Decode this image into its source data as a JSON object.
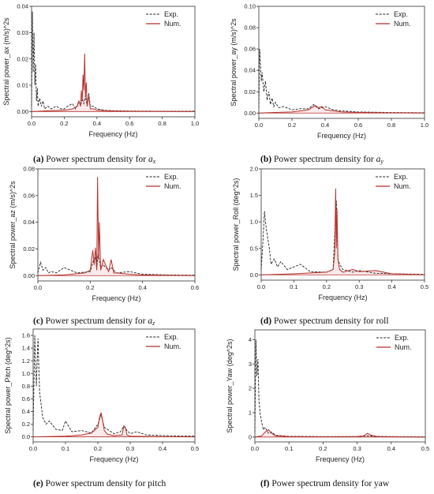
{
  "chart_data": [
    {
      "type": "line",
      "caption": {
        "label": "(a)",
        "text": "Power spectrum density for",
        "var": "a",
        "sub": "x"
      },
      "xlabel": "Frequency (Hz)",
      "ylabel": "Spectral power_ax (m/s)^2s",
      "xlim": [
        0,
        1.0
      ],
      "ylim": [
        -0.002,
        0.04
      ],
      "xticks": [
        0.0,
        0.2,
        0.4,
        0.6,
        0.8,
        1.0
      ],
      "xtick_labels": [
        "0.0",
        "0.2",
        "0.4",
        "0.6",
        "0.8",
        "1.0"
      ],
      "yticks": [
        0.0,
        0.01,
        0.02,
        0.03,
        0.04
      ],
      "ytick_labels": [
        "0.00",
        "0.01",
        "0.02",
        "0.03",
        "0.04"
      ],
      "legend": [
        "Exp.",
        "Num."
      ],
      "legend_position": "top-right",
      "series": [
        {
          "name": "Exp.",
          "style": "dashed",
          "x": [
            0.0,
            0.005,
            0.01,
            0.015,
            0.02,
            0.025,
            0.03,
            0.035,
            0.04,
            0.05,
            0.06,
            0.07,
            0.08,
            0.1,
            0.12,
            0.15,
            0.18,
            0.2,
            0.22,
            0.25,
            0.27,
            0.29,
            0.3,
            0.31,
            0.32,
            0.33,
            0.34,
            0.35,
            0.36,
            0.38,
            0.4,
            0.45,
            0.5,
            0.6,
            0.8,
            1.0
          ],
          "y": [
            0.002,
            0.038,
            0.015,
            0.03,
            0.01,
            0.018,
            0.004,
            0.009,
            0.002,
            0.005,
            0.002,
            0.004,
            0.001,
            0.002,
            0.001,
            0.002,
            0.001,
            0.001,
            0.002,
            0.003,
            0.001,
            0.004,
            0.002,
            0.005,
            0.003,
            0.006,
            0.002,
            0.007,
            0.002,
            0.002,
            0.001,
            0.0005,
            0.0003,
            0.0002,
            0.0001,
            0.0001
          ]
        },
        {
          "name": "Num.",
          "style": "solid",
          "x": [
            0.0,
            0.1,
            0.2,
            0.25,
            0.28,
            0.29,
            0.3,
            0.305,
            0.31,
            0.315,
            0.32,
            0.325,
            0.33,
            0.335,
            0.34,
            0.35,
            0.36,
            0.38,
            0.4,
            0.5,
            0.6,
            1.0
          ],
          "y": [
            0.0,
            0.0003,
            0.0005,
            0.001,
            0.002,
            0.004,
            0.002,
            0.008,
            0.004,
            0.014,
            0.008,
            0.022,
            0.006,
            0.011,
            0.002,
            0.006,
            0.001,
            0.001,
            0.0005,
            0.0002,
            0.0001,
            0.0
          ]
        }
      ]
    },
    {
      "type": "line",
      "caption": {
        "label": "(b)",
        "text": "Power spectrum density for",
        "var": "a",
        "sub": "y"
      },
      "xlabel": "Frequency (Hz)",
      "ylabel": "Spectral power_ay (m/s)^2s",
      "xlim": [
        0,
        1.0
      ],
      "ylim": [
        -0.005,
        0.1
      ],
      "xticks": [
        0.0,
        0.2,
        0.4,
        0.6,
        0.8,
        1.0
      ],
      "xtick_labels": [
        "0.0",
        "0.2",
        "0.4",
        "0.6",
        "0.8",
        "1.0"
      ],
      "yticks": [
        0.0,
        0.02,
        0.04,
        0.06,
        0.08,
        0.1
      ],
      "ytick_labels": [
        "0.00",
        "0.02",
        "0.04",
        "0.06",
        "0.08",
        "0.10"
      ],
      "legend": [
        "Exp.",
        "Num."
      ],
      "legend_position": "top-right",
      "series": [
        {
          "name": "Exp.",
          "style": "dashed",
          "x": [
            0.0,
            0.005,
            0.01,
            0.015,
            0.02,
            0.03,
            0.04,
            0.05,
            0.06,
            0.07,
            0.08,
            0.09,
            0.1,
            0.12,
            0.15,
            0.2,
            0.25,
            0.3,
            0.33,
            0.36,
            0.4,
            0.45,
            0.5,
            0.6,
            0.8,
            1.0
          ],
          "y": [
            0.005,
            0.06,
            0.045,
            0.03,
            0.038,
            0.02,
            0.03,
            0.012,
            0.02,
            0.008,
            0.014,
            0.006,
            0.01,
            0.005,
            0.006,
            0.003,
            0.004,
            0.004,
            0.008,
            0.004,
            0.006,
            0.003,
            0.002,
            0.001,
            0.0005,
            0.0003
          ]
        },
        {
          "name": "Num.",
          "style": "solid",
          "x": [
            0.0,
            0.1,
            0.2,
            0.25,
            0.3,
            0.32,
            0.34,
            0.36,
            0.38,
            0.4,
            0.45,
            0.5,
            0.6,
            0.8,
            1.0
          ],
          "y": [
            0.0,
            0.0005,
            0.001,
            0.002,
            0.003,
            0.005,
            0.007,
            0.005,
            0.006,
            0.003,
            0.002,
            0.001,
            0.0005,
            0.0002,
            0.0
          ]
        }
      ]
    },
    {
      "type": "line",
      "caption": {
        "label": "(c)",
        "text": "Power spectrum density for",
        "var": "a",
        "sub": "z"
      },
      "xlabel": "Frequency (Hz)",
      "ylabel": "Spectral power_az (m/s)^2s",
      "xlim": [
        0,
        0.6
      ],
      "ylim": [
        -0.004,
        0.08
      ],
      "xticks": [
        0.0,
        0.2,
        0.4,
        0.6
      ],
      "xtick_labels": [
        "0.0",
        "0.2",
        "0.4",
        "0.6"
      ],
      "yticks": [
        0.0,
        0.02,
        0.04,
        0.06,
        0.08
      ],
      "ytick_labels": [
        "0.00",
        "0.02",
        "0.04",
        "0.06",
        "0.08"
      ],
      "legend": [
        "Exp.",
        "Num."
      ],
      "legend_position": "top-right",
      "series": [
        {
          "name": "Exp.",
          "style": "dashed",
          "x": [
            0.0,
            0.01,
            0.02,
            0.03,
            0.04,
            0.05,
            0.07,
            0.1,
            0.15,
            0.2,
            0.21,
            0.22,
            0.225,
            0.23,
            0.24,
            0.25,
            0.27,
            0.28,
            0.3,
            0.35,
            0.4,
            0.5,
            0.6
          ],
          "y": [
            0.002,
            0.01,
            0.004,
            0.006,
            0.002,
            0.003,
            0.002,
            0.006,
            0.002,
            0.003,
            0.01,
            0.014,
            0.005,
            0.016,
            0.006,
            0.008,
            0.004,
            0.006,
            0.002,
            0.003,
            0.001,
            0.0005,
            0.0003
          ]
        },
        {
          "name": "Num.",
          "style": "solid",
          "x": [
            0.0,
            0.1,
            0.18,
            0.2,
            0.21,
            0.215,
            0.22,
            0.225,
            0.228,
            0.232,
            0.235,
            0.24,
            0.25,
            0.27,
            0.28,
            0.29,
            0.3,
            0.35,
            0.4,
            0.5,
            0.6
          ],
          "y": [
            0.0,
            0.0005,
            0.002,
            0.004,
            0.019,
            0.008,
            0.021,
            0.004,
            0.074,
            0.012,
            0.04,
            0.004,
            0.012,
            0.003,
            0.012,
            0.002,
            0.002,
            0.001,
            0.0005,
            0.0002,
            0.0
          ]
        }
      ]
    },
    {
      "type": "line",
      "caption": {
        "label": "(d)",
        "text": "Power spectrum density for roll",
        "var": "",
        "sub": ""
      },
      "xlabel": "Frequency (Hz)",
      "ylabel": "Spectral power_Roll (deg^2s)",
      "xlim": [
        0,
        0.5
      ],
      "ylim": [
        -0.1,
        2.0
      ],
      "xticks": [
        0.0,
        0.1,
        0.2,
        0.3,
        0.4,
        0.5
      ],
      "xtick_labels": [
        "0.0",
        "0.1",
        "0.2",
        "0.3",
        "0.4",
        "0.5"
      ],
      "yticks": [
        0.0,
        0.5,
        1.0,
        1.5,
        2.0
      ],
      "ytick_labels": [
        "0.0",
        "0.5",
        "1.0",
        "1.5",
        "2.0"
      ],
      "legend": [
        "Exp.",
        "Num."
      ],
      "legend_position": "top-right",
      "series": [
        {
          "name": "Exp.",
          "style": "dashed",
          "x": [
            0.0,
            0.005,
            0.01,
            0.015,
            0.02,
            0.025,
            0.03,
            0.04,
            0.05,
            0.06,
            0.08,
            0.1,
            0.12,
            0.15,
            0.2,
            0.22,
            0.23,
            0.235,
            0.24,
            0.25,
            0.28,
            0.3,
            0.35,
            0.4,
            0.5
          ],
          "y": [
            0.1,
            0.6,
            1.2,
            0.9,
            0.7,
            0.5,
            0.2,
            0.3,
            0.15,
            0.25,
            0.1,
            0.15,
            0.2,
            0.06,
            0.05,
            0.1,
            1.4,
            0.3,
            0.2,
            0.1,
            0.05,
            0.08,
            0.03,
            0.02,
            0.01
          ]
        },
        {
          "name": "Num.",
          "style": "solid",
          "x": [
            0.0,
            0.1,
            0.2,
            0.22,
            0.225,
            0.228,
            0.23,
            0.232,
            0.235,
            0.24,
            0.25,
            0.28,
            0.3,
            0.35,
            0.4,
            0.5
          ],
          "y": [
            0.0,
            0.02,
            0.05,
            0.1,
            0.4,
            1.63,
            0.5,
            1.25,
            0.3,
            0.1,
            0.05,
            0.1,
            0.06,
            0.08,
            0.02,
            0.0
          ]
        }
      ]
    },
    {
      "type": "line",
      "caption": {
        "label": "(e)",
        "text": "Power spectrum density for pitch",
        "var": "",
        "sub": ""
      },
      "xlabel": "Frequency (Hz)",
      "ylabel": "Spectral power_Pitch (deg^2s)",
      "xlim": [
        0,
        0.5
      ],
      "ylim": [
        -0.08,
        1.7
      ],
      "xticks": [
        0.0,
        0.1,
        0.2,
        0.3,
        0.4,
        0.5
      ],
      "xtick_labels": [
        "0.0",
        "0.1",
        "0.2",
        "0.3",
        "0.4",
        "0.5"
      ],
      "yticks": [
        0.0,
        0.2,
        0.4,
        0.6,
        0.8,
        1.0,
        1.2,
        1.4,
        1.6
      ],
      "ytick_labels": [
        "0.0",
        "0.2",
        "0.4",
        "0.6",
        "0.8",
        "1.0",
        "1.2",
        "1.4",
        "1.6"
      ],
      "legend": [
        "Exp.",
        "Num."
      ],
      "legend_position": "top-right",
      "series": [
        {
          "name": "Exp.",
          "style": "dashed",
          "x": [
            0.0,
            0.005,
            0.01,
            0.015,
            0.02,
            0.03,
            0.04,
            0.05,
            0.07,
            0.09,
            0.1,
            0.12,
            0.15,
            0.18,
            0.2,
            0.21,
            0.22,
            0.25,
            0.27,
            0.28,
            0.29,
            0.3,
            0.32,
            0.35,
            0.4,
            0.5
          ],
          "y": [
            0.1,
            1.6,
            0.8,
            1.55,
            0.7,
            0.3,
            0.2,
            0.25,
            0.12,
            0.1,
            0.25,
            0.08,
            0.1,
            0.06,
            0.2,
            0.35,
            0.15,
            0.05,
            0.08,
            0.17,
            0.1,
            0.05,
            0.08,
            0.03,
            0.02,
            0.01
          ]
        },
        {
          "name": "Num.",
          "style": "solid",
          "x": [
            0.0,
            0.1,
            0.15,
            0.18,
            0.2,
            0.205,
            0.21,
            0.215,
            0.22,
            0.23,
            0.25,
            0.275,
            0.28,
            0.285,
            0.29,
            0.3,
            0.35,
            0.4,
            0.5
          ],
          "y": [
            0.0,
            0.01,
            0.03,
            0.06,
            0.15,
            0.3,
            0.38,
            0.25,
            0.1,
            0.04,
            0.02,
            0.03,
            0.17,
            0.15,
            0.03,
            0.01,
            0.005,
            0.002,
            0.0
          ]
        }
      ]
    },
    {
      "type": "line",
      "caption": {
        "label": "(f)",
        "text": "Power spectrum density for yaw",
        "var": "",
        "sub": ""
      },
      "xlabel": "Frequency (Hz)",
      "ylabel": "Spectral power_Yaw (deg^2s)",
      "xlim": [
        0,
        0.5
      ],
      "ylim": [
        -0.2,
        4.4
      ],
      "xticks": [
        0.0,
        0.1,
        0.2,
        0.3,
        0.4,
        0.5
      ],
      "xtick_labels": [
        "0.0",
        "0.1",
        "0.2",
        "0.3",
        "0.4",
        "0.5"
      ],
      "yticks": [
        0,
        1,
        2,
        3,
        4
      ],
      "ytick_labels": [
        "0",
        "1",
        "2",
        "3",
        "4"
      ],
      "legend": [
        "Exp.",
        "Num."
      ],
      "legend_position": "top-right",
      "series": [
        {
          "name": "Exp.",
          "style": "dashed",
          "x": [
            0.0,
            0.003,
            0.006,
            0.009,
            0.012,
            0.015,
            0.02,
            0.025,
            0.03,
            0.04,
            0.05,
            0.06,
            0.08,
            0.1,
            0.2,
            0.3,
            0.33,
            0.35,
            0.4,
            0.5
          ],
          "y": [
            0.2,
            4.0,
            2.5,
            3.2,
            1.5,
            1.0,
            0.6,
            0.3,
            0.4,
            0.15,
            0.2,
            0.08,
            0.05,
            0.03,
            0.02,
            0.02,
            0.05,
            0.03,
            0.02,
            0.01
          ]
        },
        {
          "name": "Num.",
          "style": "solid",
          "x": [
            0.0,
            0.02,
            0.03,
            0.04,
            0.05,
            0.06,
            0.1,
            0.2,
            0.3,
            0.32,
            0.33,
            0.34,
            0.36,
            0.4,
            0.5
          ],
          "y": [
            0.0,
            0.05,
            0.2,
            0.3,
            0.15,
            0.05,
            0.02,
            0.01,
            0.02,
            0.05,
            0.15,
            0.08,
            0.02,
            0.01,
            0.0
          ]
        }
      ]
    }
  ],
  "colors": {
    "exp": "#222222",
    "num": "#b5312a",
    "axis": "#333333",
    "shade": "#f6d8dc"
  }
}
